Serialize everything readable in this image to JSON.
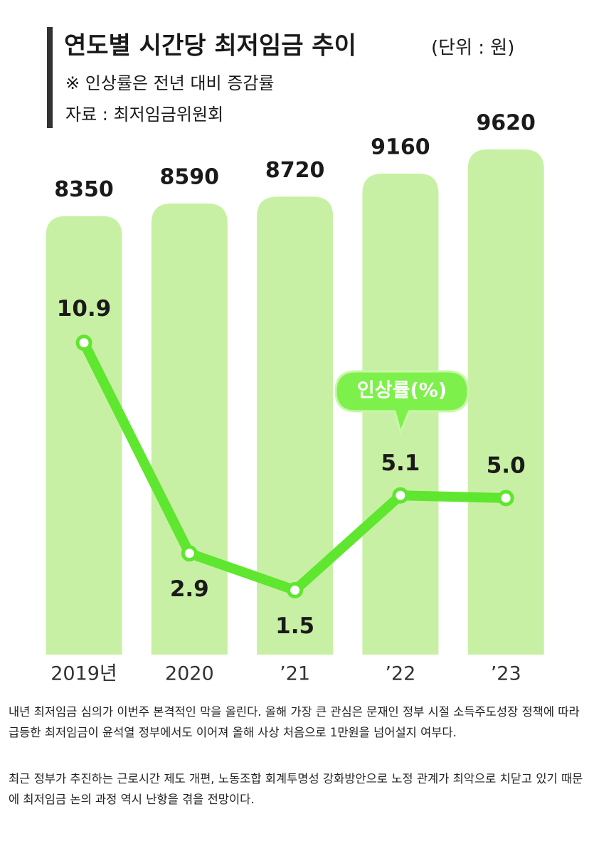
{
  "chart_data": {
    "type": "bar",
    "title": "연도별 시간당 최저임금 추이",
    "unit": "(단위 : 원)",
    "note": "※ 인상률은 전년 대비 증감률",
    "source": "자료 : 최저임금위원회",
    "categories": [
      "2019년",
      "2020",
      "’21",
      "’22",
      "’23"
    ],
    "values": [
      8350,
      8590,
      8720,
      9160,
      9620
    ],
    "color": "#c8f0a4",
    "overlay": {
      "type": "line",
      "name": "인상률(%)",
      "color": "#5fe62f",
      "values": [
        10.9,
        2.9,
        1.5,
        5.1,
        5.0
      ],
      "value_labels": [
        "10.9",
        "2.9",
        "1.5",
        "5.1",
        "5.0"
      ]
    }
  },
  "article": {
    "paragraphs": [
      "내년 최저임금 심의가 이번주 본격적인 막을 올린다. 올해 가장 큰 관심은 문재인 정부 시절 소득주도성장 정책에 따라 급등한 최저임금이 윤석열 정부에서도 이어져 올해 사상 처음으로 1만원을 넘어설지 여부다.",
      "최근 정부가 추진하는 근로시간 제도 개편, 노동조합 회계투명성 강화방안으로 노정 관계가 최악으로 치닫고 있기 때문에 최저임금 논의 과정 역시 난항을 겪을 전망이다."
    ]
  }
}
